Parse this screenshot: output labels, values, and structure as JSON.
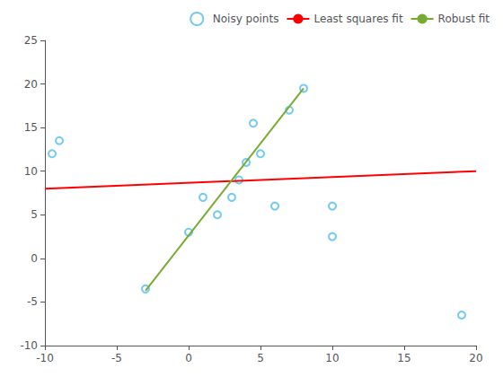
{
  "chart_data": {
    "type": "scatter",
    "series": [
      {
        "name": "Noisy points",
        "type": "scatter",
        "marker": "open_circle",
        "color": "#4DBEEE",
        "x": [
          -9,
          -9.5,
          -3,
          0,
          1,
          2,
          3,
          3.5,
          4,
          4.5,
          5,
          6,
          7,
          8,
          10,
          10,
          19
        ],
        "values": [
          13.5,
          12,
          -3.5,
          3,
          7,
          5,
          7,
          9,
          11,
          15.5,
          12,
          6,
          17,
          19.5,
          6,
          2.5,
          -6.5
        ]
      },
      {
        "name": "Least squares fit",
        "type": "line",
        "line_style": "solid",
        "color": "#FF0000",
        "x": [
          -10,
          20
        ],
        "values": [
          8.0,
          10.0
        ]
      },
      {
        "name": "Robust fit",
        "type": "line",
        "line_style": "solid",
        "color": "#77AC30",
        "x": [
          -3,
          8
        ],
        "values": [
          -3.7,
          19.5
        ]
      }
    ],
    "xlim": [
      -10,
      20
    ],
    "ylim": [
      -10,
      25
    ],
    "xticks": [
      -10,
      -5,
      0,
      5,
      10,
      15,
      20
    ],
    "yticks": [
      -10,
      -5,
      0,
      5,
      10,
      15,
      20,
      25
    ],
    "grid": false,
    "legend": "upper right"
  }
}
